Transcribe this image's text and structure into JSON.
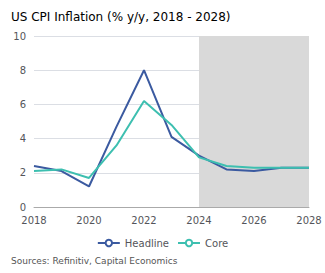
{
  "chart_data": {
    "type": "line",
    "title": "US CPI Inflation (% y/y, 2018 - 2028)",
    "source": "Sources: Refinitiv, Capital Economics",
    "series": [
      {
        "name": "Headline",
        "color": "#3b5aa0",
        "x": [
          2018,
          2019,
          2020,
          2021,
          2022,
          2023,
          2024,
          2025,
          2026,
          2027,
          2028
        ],
        "values": [
          2.4,
          2.1,
          1.2,
          4.7,
          8.0,
          4.1,
          3.0,
          2.2,
          2.1,
          2.3,
          2.3
        ]
      },
      {
        "name": "Core",
        "color": "#3dbfb0",
        "x": [
          2018,
          2019,
          2020,
          2021,
          2022,
          2023,
          2024,
          2025,
          2026,
          2027,
          2028
        ],
        "values": [
          2.1,
          2.2,
          1.7,
          3.6,
          6.2,
          4.8,
          2.9,
          2.4,
          2.3,
          2.3,
          2.3
        ]
      }
    ],
    "forecast": {
      "x0": 2024,
      "x1": 2028,
      "color": "#d9d9d9"
    },
    "xlim": [
      2018,
      2028
    ],
    "xticks": [
      2018,
      2020,
      2022,
      2024,
      2026,
      2028
    ],
    "ylim": [
      0,
      10
    ],
    "yticks": [
      0,
      2,
      4,
      6,
      8,
      10
    ],
    "grid": true,
    "legend": "bottom"
  }
}
